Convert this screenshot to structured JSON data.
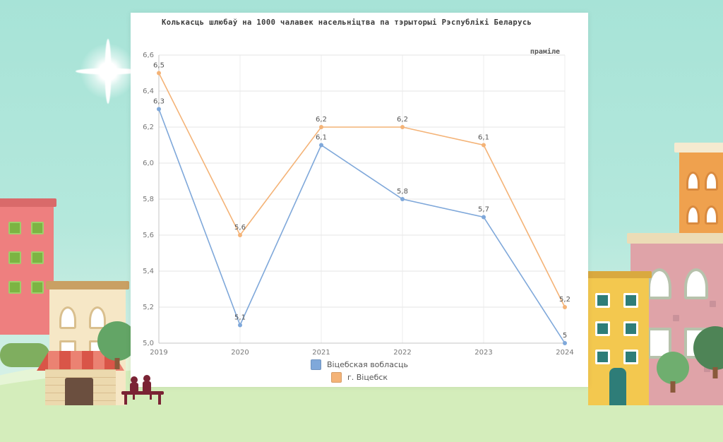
{
  "chart_data": {
    "type": "line",
    "title": "Колькасць шлюбаў на 1000 чалавек насельніцтва па тэрыторыі Рэспублікі Беларусь",
    "unit_label": "праміле",
    "categories": [
      "2019",
      "2020",
      "2021",
      "2022",
      "2023",
      "2024"
    ],
    "series": [
      {
        "name": "Віцебская вобласць",
        "color": "#7fa8da",
        "values": [
          6.3,
          5.1,
          6.1,
          5.8,
          5.7,
          5.0
        ],
        "labels": [
          "6,3",
          "5,1",
          "6,1",
          "5,8",
          "5,7",
          "5"
        ]
      },
      {
        "name": "г. Віцебск",
        "color": "#f4b377",
        "values": [
          6.5,
          5.6,
          6.2,
          6.2,
          6.1,
          5.2
        ],
        "labels": [
          "6,5",
          "5,6",
          "6,2",
          "6,2",
          "6,1",
          "5,2"
        ]
      }
    ],
    "ylim": [
      5.0,
      6.6
    ],
    "ytick_step": 0.2,
    "ytick_labels": [
      "5,0",
      "5,2",
      "5,4",
      "5,6",
      "5,8",
      "6,0",
      "6,2",
      "6,4",
      "6,6"
    ],
    "grid": true,
    "legend_position": "bottom"
  }
}
